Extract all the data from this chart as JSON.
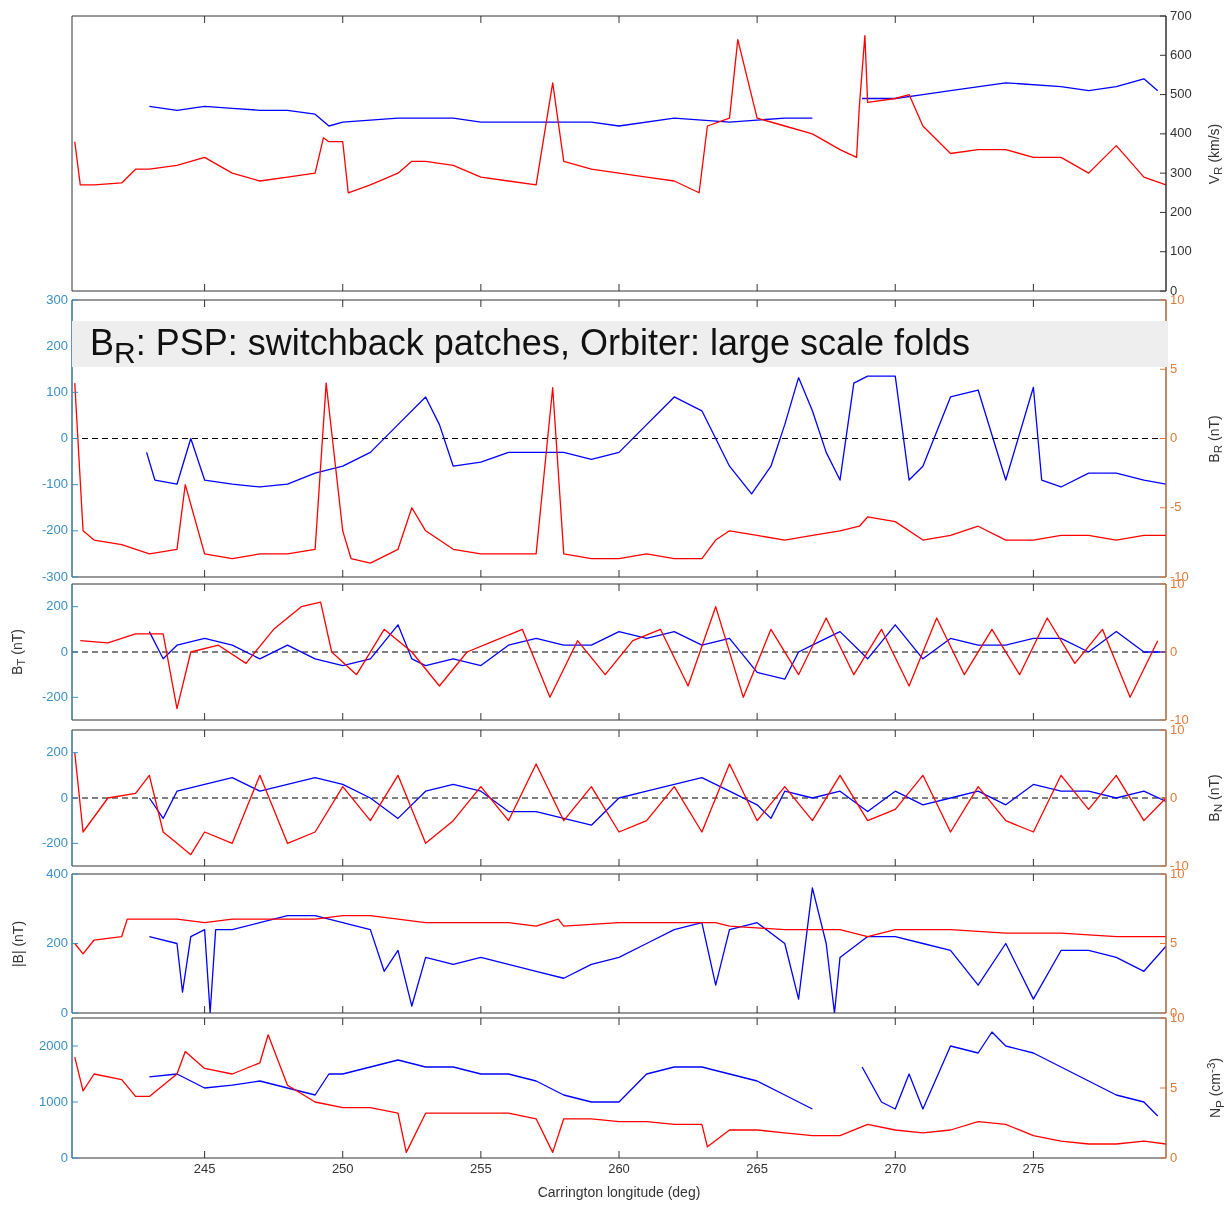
{
  "chart_data": [
    {
      "type": "line",
      "xlim": [
        240.2,
        279.8
      ],
      "xticks": [
        245,
        250,
        255,
        260,
        265,
        270,
        275
      ],
      "y2lim": [
        0,
        700
      ],
      "y2ticks": [
        0,
        100,
        200,
        300,
        400,
        500,
        600,
        700
      ],
      "y2label": "V$_{R}$ (km/s)",
      "tick_labels": "y",
      "series": [
        {
          "color": "#ff0000",
          "axis": "y2",
          "x": [
            240.3,
            240.5,
            241,
            242,
            242.5,
            243,
            244,
            245,
            246,
            247,
            248,
            249,
            249.3,
            249.5,
            250,
            250.2,
            251,
            252,
            252.5,
            253,
            254,
            255,
            256,
            257,
            257.6,
            258,
            259,
            260,
            261,
            262,
            262.9,
            263.2,
            264,
            264.3,
            265,
            266,
            267,
            268,
            268.6,
            268.7,
            268.9,
            269,
            270,
            270.5,
            271,
            272,
            273,
            274,
            275,
            276,
            277,
            278,
            279,
            279.8
          ],
          "values": [
            380,
            270,
            270,
            275,
            310,
            310,
            320,
            340,
            300,
            280,
            290,
            300,
            390,
            380,
            380,
            250,
            270,
            300,
            330,
            330,
            320,
            290,
            280,
            270,
            530,
            330,
            310,
            300,
            290,
            280,
            250,
            420,
            440,
            640,
            440,
            420,
            400,
            360,
            340,
            470,
            650,
            480,
            490,
            500,
            420,
            350,
            360,
            360,
            340,
            340,
            300,
            370,
            290,
            270
          ]
        },
        {
          "color": "#0000ff",
          "axis": "y2",
          "x": [
            243,
            244,
            245,
            246,
            247,
            248,
            249,
            249.5,
            250,
            252,
            254,
            255,
            257,
            259,
            260,
            262,
            264,
            266,
            267,
            268,
            268.8,
            270,
            271,
            272,
            274,
            276,
            277,
            278,
            279,
            279.5
          ],
          "values": [
            470,
            460,
            470,
            465,
            460,
            460,
            450,
            420,
            430,
            440,
            440,
            430,
            430,
            430,
            420,
            440,
            430,
            440,
            440,
            null,
            490,
            490,
            500,
            510,
            530,
            520,
            510,
            520,
            540,
            510
          ]
        }
      ]
    },
    {
      "type": "line",
      "xlim": [
        240.2,
        279.8
      ],
      "xticks": [
        245,
        250,
        255,
        260,
        265,
        270,
        275
      ],
      "ylim": [
        -300,
        300
      ],
      "yticks": [
        -300,
        -200,
        -100,
        0,
        100,
        200,
        300
      ],
      "y2lim": [
        -10,
        10
      ],
      "y2ticks": [
        -10,
        -5,
        0,
        5,
        10
      ],
      "y2label": "B$_{R}$ (nT)",
      "tick_labels": "y",
      "ref_lines": [
        {
          "axis": "y",
          "value": 0,
          "color": "#000000",
          "line_style": "dashed"
        }
      ],
      "annotations": [
        "B$_{R}$: PSP: switchback patches, Orbiter: large scale folds"
      ],
      "series": [
        {
          "color": "#ff0000",
          "x": [
            240.3,
            240.6,
            241,
            242,
            243,
            244,
            244.3,
            245,
            246,
            247,
            248,
            249,
            249.4,
            250,
            250.3,
            251,
            252,
            252.5,
            253,
            254,
            255,
            256,
            257,
            257.6,
            258,
            259,
            260,
            261,
            262,
            263,
            263.5,
            264,
            265,
            266,
            267,
            268,
            268.7,
            269,
            270,
            271,
            272,
            273,
            274,
            275,
            276,
            277,
            278,
            279,
            279.8
          ],
          "values": [
            120,
            -200,
            -220,
            -230,
            -250,
            -240,
            -100,
            -250,
            -260,
            -250,
            -250,
            -240,
            120,
            -200,
            -260,
            -270,
            -240,
            -150,
            -200,
            -240,
            -250,
            -250,
            -250,
            110,
            -250,
            -260,
            -260,
            -250,
            -260,
            -260,
            -220,
            -200,
            -210,
            -220,
            -210,
            -200,
            -190,
            -170,
            -180,
            -220,
            -210,
            -190,
            -220,
            -220,
            -210,
            -210,
            -220,
            -210,
            -210
          ]
        },
        {
          "color": "#0000ff",
          "axis": "y2",
          "x": [
            242.9,
            243.2,
            244,
            244.5,
            245,
            246,
            247,
            248,
            249,
            250,
            251,
            252,
            253,
            253.5,
            254,
            255,
            256,
            257,
            258,
            259,
            260,
            261,
            262,
            263,
            264,
            264.8,
            265.5,
            266,
            266.5,
            267,
            267.5,
            268,
            268.5,
            269,
            270,
            270.5,
            271,
            272,
            273,
            274,
            275,
            275.3,
            276,
            277,
            278,
            279,
            279.8
          ],
          "values": [
            -1,
            -3,
            -3.3,
            0,
            -3,
            -3.3,
            -3.5,
            -3.3,
            -2.5,
            -2,
            -1,
            1,
            3,
            1,
            -2,
            -1.7,
            -1,
            -1,
            -1,
            -1.5,
            -1,
            1,
            3,
            2,
            -2,
            -4,
            -2,
            1,
            4.4,
            2,
            -1,
            -3,
            4,
            4.5,
            4.5,
            -3,
            -2,
            3,
            3.5,
            -3,
            3.7,
            -3,
            -3.5,
            -2.5,
            -2.5,
            -3,
            -3.3
          ]
        }
      ]
    },
    {
      "type": "line",
      "xlim": [
        240.2,
        279.8
      ],
      "xticks": [
        245,
        250,
        255,
        260,
        265,
        270,
        275
      ],
      "ylim": [
        -300,
        300
      ],
      "yticks": [
        -200,
        0,
        200
      ],
      "y2lim": [
        -10,
        10
      ],
      "y2ticks": [
        -10,
        0,
        10
      ],
      "ylabel": "B$_{T}$ (nT)",
      "tick_labels": "y",
      "ref_lines": [
        {
          "axis": "y",
          "value": 0,
          "color": "#000000",
          "line_style": "dashed"
        }
      ],
      "series": [
        {
          "color": "#ff0000",
          "x": [
            240.5,
            241.5,
            242.5,
            243.5,
            244,
            244.5,
            245.5,
            246.5,
            247.5,
            248.5,
            249.2,
            249.6,
            250.5,
            251.5,
            252.5,
            253.5,
            254.5,
            255.5,
            256.5,
            257.5,
            258.5,
            259.5,
            260.5,
            261.5,
            262.5,
            263.5,
            264.5,
            265.5,
            266.5,
            267.5,
            268.5,
            269.5,
            270.5,
            271.5,
            272.5,
            273.5,
            274.5,
            275.5,
            276.5,
            277.5,
            278.5,
            279.5
          ],
          "values": [
            50,
            40,
            80,
            80,
            -250,
            0,
            30,
            -50,
            100,
            200,
            220,
            0,
            -100,
            100,
            0,
            -150,
            0,
            50,
            100,
            -200,
            50,
            -100,
            50,
            100,
            -150,
            200,
            -200,
            100,
            -100,
            150,
            -100,
            100,
            -150,
            150,
            -100,
            100,
            -100,
            150,
            -50,
            100,
            -200,
            50
          ]
        },
        {
          "color": "#0000ff",
          "axis": "y2",
          "x": [
            243,
            243.5,
            244,
            245,
            246,
            247,
            248,
            249,
            250,
            251,
            252,
            252.5,
            253,
            254,
            255,
            256,
            257,
            258,
            259,
            260,
            261,
            262,
            263,
            264,
            265,
            266,
            266.5,
            267,
            268,
            269,
            270,
            271,
            272,
            273,
            274,
            275,
            276,
            277,
            278,
            279,
            279.8
          ],
          "values": [
            3,
            -1,
            1,
            2,
            1,
            -1,
            1,
            -1,
            -2,
            -1,
            4,
            -1,
            -2,
            -1,
            -2,
            1,
            2,
            1,
            1,
            3,
            2,
            3,
            1,
            2,
            -3,
            -4,
            0,
            1,
            3,
            -1,
            4,
            -1,
            2,
            1,
            1,
            2,
            2,
            0,
            3,
            0,
            0
          ]
        }
      ]
    },
    {
      "type": "line",
      "xlim": [
        240.2,
        279.8
      ],
      "xticks": [
        245,
        250,
        255,
        260,
        265,
        270,
        275
      ],
      "ylim": [
        -300,
        300
      ],
      "yticks": [
        -200,
        0,
        200
      ],
      "y2lim": [
        -10,
        10
      ],
      "y2ticks": [
        -10,
        0,
        10
      ],
      "y2label": "B$_{N}$ (nT)",
      "tick_labels": "y",
      "ref_lines": [
        {
          "axis": "y",
          "value": 0,
          "color": "#000000",
          "line_style": "dashed"
        }
      ],
      "series": [
        {
          "color": "#ff0000",
          "x": [
            240.3,
            240.6,
            241.5,
            242.5,
            243,
            243.5,
            244,
            244.5,
            245,
            246,
            247,
            248,
            249,
            250,
            251,
            252,
            253,
            254,
            255,
            256,
            257,
            258,
            259,
            260,
            261,
            262,
            263,
            264,
            265,
            266,
            267,
            268,
            269,
            270,
            271,
            272,
            273,
            274,
            275,
            276,
            277,
            278,
            279,
            279.8
          ],
          "values": [
            200,
            -150,
            0,
            20,
            100,
            -150,
            -200,
            -250,
            -150,
            -200,
            100,
            -200,
            -150,
            50,
            -100,
            100,
            -200,
            -100,
            50,
            -100,
            150,
            -100,
            50,
            -150,
            -100,
            50,
            -150,
            150,
            -100,
            50,
            -100,
            100,
            -100,
            -50,
            100,
            -150,
            50,
            -100,
            -150,
            100,
            -50,
            100,
            -100,
            0
          ]
        },
        {
          "color": "#0000ff",
          "axis": "y2",
          "x": [
            243,
            243.5,
            244,
            245,
            246,
            247,
            248,
            249,
            250,
            251,
            252,
            253,
            254,
            255,
            256,
            257,
            258,
            259,
            260,
            261,
            262,
            263,
            264,
            265,
            265.5,
            266,
            267,
            268,
            269,
            270,
            271,
            272,
            273,
            274,
            275,
            276,
            277,
            278,
            279,
            279.8
          ],
          "values": [
            0,
            -3,
            1,
            2,
            3,
            1,
            2,
            3,
            2,
            0,
            -3,
            1,
            2,
            1,
            -2,
            -2,
            -3,
            -4,
            0,
            1,
            2,
            3,
            1,
            -1,
            -3,
            1,
            0,
            1,
            -2,
            1,
            -1,
            0,
            1,
            -1,
            2,
            1,
            1,
            0,
            1,
            -0.5
          ]
        }
      ]
    },
    {
      "type": "line",
      "xlim": [
        240.2,
        279.8
      ],
      "xticks": [
        245,
        250,
        255,
        260,
        265,
        270,
        275
      ],
      "ylim": [
        0,
        400
      ],
      "yticks": [
        0,
        200,
        400
      ],
      "y2lim": [
        0,
        10
      ],
      "y2ticks": [
        0,
        5,
        10
      ],
      "ylabel": "|B| (nT)",
      "tick_labels": "y",
      "series": [
        {
          "color": "#ff0000",
          "x": [
            240.3,
            240.6,
            241,
            242,
            242.2,
            243,
            244,
            245,
            246,
            247,
            248,
            249,
            250,
            251,
            252,
            253,
            254,
            255,
            256,
            257,
            257.8,
            258,
            260,
            262,
            263.5,
            264,
            266,
            268,
            269,
            270,
            272,
            274,
            276,
            278,
            279.8
          ],
          "values": [
            200,
            170,
            210,
            220,
            270,
            270,
            270,
            260,
            270,
            270,
            270,
            270,
            280,
            280,
            270,
            260,
            260,
            260,
            260,
            250,
            270,
            250,
            260,
            260,
            260,
            250,
            240,
            240,
            220,
            240,
            240,
            230,
            230,
            220,
            220
          ]
        },
        {
          "color": "#0000ff",
          "axis": "y2",
          "x": [
            243,
            244,
            244.2,
            244.5,
            245,
            245.2,
            245.4,
            246,
            247,
            248,
            249,
            250,
            251,
            251.5,
            252,
            252.5,
            253,
            254,
            255,
            256,
            257,
            258,
            259,
            260,
            261,
            262,
            263,
            263.5,
            264,
            265,
            266,
            266.5,
            267,
            267.5,
            267.8,
            268,
            269,
            270,
            271,
            272,
            273,
            274,
            275,
            276,
            277,
            278,
            279,
            279.8
          ],
          "values": [
            5.5,
            5,
            1.5,
            5.5,
            6,
            0,
            6,
            6,
            6.5,
            7,
            7,
            6.5,
            6,
            3,
            4.5,
            0.5,
            4,
            3.5,
            4,
            3.5,
            3,
            2.5,
            3.5,
            4,
            5,
            6,
            6.5,
            2,
            6,
            6.5,
            5,
            1,
            9,
            5,
            0,
            4,
            5.5,
            5.5,
            5,
            4.5,
            2,
            5,
            1,
            4.5,
            4.5,
            4,
            3,
            4.8
          ]
        }
      ]
    },
    {
      "type": "line",
      "xlim": [
        240.2,
        279.8
      ],
      "xticks": [
        245,
        250,
        255,
        260,
        265,
        270,
        275
      ],
      "ylim": [
        0,
        2500
      ],
      "yticks": [
        0,
        1000,
        2000
      ],
      "y2lim": [
        0,
        10
      ],
      "y2ticks": [
        0,
        5,
        10
      ],
      "y2label": "N$_{P}$ (cm$^{-3}$)",
      "xlabel": "Carrington longitude (deg)",
      "series": [
        {
          "color": "#ff0000",
          "x": [
            240.3,
            240.6,
            241,
            242,
            242.5,
            243,
            244,
            244.3,
            245,
            246,
            247,
            247.3,
            248,
            249,
            250,
            251,
            252,
            252.3,
            253,
            254,
            255,
            256,
            257,
            257.6,
            258,
            259,
            260,
            261,
            262,
            263,
            263.2,
            264,
            265,
            266,
            267,
            268,
            269,
            270,
            271,
            272,
            273,
            274,
            275,
            276,
            277,
            278,
            279,
            279.8
          ],
          "values": [
            1800,
            1200,
            1500,
            1400,
            1100,
            1100,
            1500,
            1900,
            1600,
            1500,
            1700,
            2200,
            1300,
            1000,
            900,
            900,
            800,
            100,
            800,
            800,
            800,
            800,
            700,
            100,
            700,
            700,
            650,
            650,
            600,
            600,
            200,
            500,
            500,
            450,
            400,
            400,
            600,
            500,
            450,
            500,
            650,
            600,
            400,
            300,
            250,
            250,
            300,
            250
          ]
        },
        {
          "color": "#0000ff",
          "axis": "y2",
          "x": [
            243,
            244,
            245,
            246,
            247,
            248,
            249,
            249.5,
            250,
            251,
            252,
            253,
            254,
            255,
            256,
            257,
            258,
            259,
            260,
            261,
            262,
            263,
            264,
            265,
            266,
            267,
            267.1,
            268.8,
            269.5,
            270,
            270.5,
            271,
            272,
            273,
            273.5,
            274,
            275,
            276,
            277,
            278,
            279,
            279.5
          ],
          "values": [
            5.8,
            6,
            5,
            5.2,
            5.5,
            5,
            4.5,
            6,
            6,
            6.5,
            7,
            6.5,
            6.5,
            6,
            6,
            5.5,
            4.5,
            4,
            4,
            6,
            6.5,
            6.5,
            6,
            5.5,
            4.5,
            3.5,
            null,
            6.5,
            4,
            3.5,
            6,
            3.5,
            8,
            7.5,
            9,
            8,
            7.5,
            6.5,
            5.5,
            4.5,
            4,
            3
          ]
        }
      ]
    }
  ]
}
